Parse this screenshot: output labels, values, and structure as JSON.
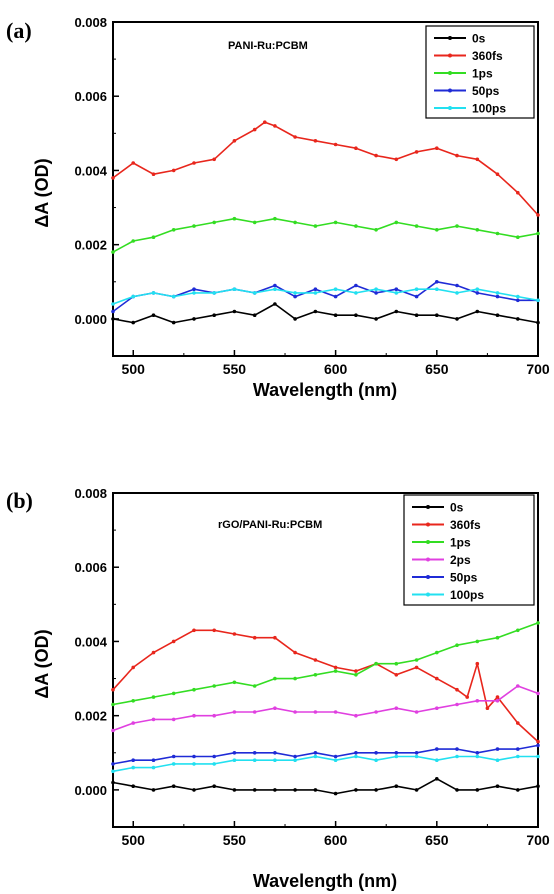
{
  "chart_data": [
    {
      "type": "line",
      "panel_label": "(a)",
      "title": "PANI-Ru:PCBM",
      "xlabel": "Wavelength (nm)",
      "ylabel": "ΔA (OD)",
      "xlim": [
        490,
        700
      ],
      "ylim": [
        -0.001,
        0.008
      ],
      "xticks": [
        "500",
        "550",
        "600",
        "650",
        "700"
      ],
      "yticks": [
        "0.000",
        "0.002",
        "0.004",
        "0.006",
        "0.008"
      ],
      "legend_position": "top-right",
      "series": [
        {
          "name": "0s",
          "color": "#000000",
          "x": [
            490,
            500,
            510,
            520,
            530,
            540,
            550,
            560,
            570,
            580,
            590,
            600,
            610,
            620,
            630,
            640,
            650,
            660,
            670,
            680,
            690,
            700
          ],
          "y": [
            0.0,
            -0.0001,
            0.0001,
            -0.0001,
            0.0,
            0.0001,
            0.0002,
            0.0001,
            0.0004,
            0.0,
            0.0002,
            0.0001,
            0.0001,
            0.0,
            0.0002,
            0.0001,
            0.0001,
            0.0,
            0.0002,
            0.0001,
            0.0,
            -0.0001
          ]
        },
        {
          "name": "360fs",
          "color": "#e8261c",
          "x": [
            490,
            500,
            510,
            520,
            530,
            540,
            550,
            560,
            565,
            570,
            580,
            590,
            600,
            610,
            620,
            630,
            640,
            650,
            660,
            670,
            680,
            690,
            700
          ],
          "y": [
            0.0038,
            0.0042,
            0.0039,
            0.004,
            0.0042,
            0.0043,
            0.0048,
            0.0051,
            0.0053,
            0.0052,
            0.0049,
            0.0048,
            0.0047,
            0.0046,
            0.0044,
            0.0043,
            0.0045,
            0.0046,
            0.0044,
            0.0043,
            0.0039,
            0.0034,
            0.0028
          ]
        },
        {
          "name": "1ps",
          "color": "#33dd22",
          "x": [
            490,
            500,
            510,
            520,
            530,
            540,
            550,
            560,
            570,
            580,
            590,
            600,
            610,
            620,
            630,
            640,
            650,
            660,
            670,
            680,
            690,
            700
          ],
          "y": [
            0.0018,
            0.0021,
            0.0022,
            0.0024,
            0.0025,
            0.0026,
            0.0027,
            0.0026,
            0.0027,
            0.0026,
            0.0025,
            0.0026,
            0.0025,
            0.0024,
            0.0026,
            0.0025,
            0.0024,
            0.0025,
            0.0024,
            0.0023,
            0.0022,
            0.0023
          ]
        },
        {
          "name": "50ps",
          "color": "#1f2bd6",
          "x": [
            490,
            500,
            510,
            520,
            530,
            540,
            550,
            560,
            570,
            580,
            590,
            600,
            610,
            620,
            630,
            640,
            650,
            660,
            670,
            680,
            690,
            700
          ],
          "y": [
            0.0002,
            0.0006,
            0.0007,
            0.0006,
            0.0008,
            0.0007,
            0.0008,
            0.0007,
            0.0009,
            0.0006,
            0.0008,
            0.0006,
            0.0009,
            0.0007,
            0.0008,
            0.0006,
            0.001,
            0.0009,
            0.0007,
            0.0006,
            0.0005,
            0.0005
          ]
        },
        {
          "name": "100ps",
          "color": "#22e0f0",
          "x": [
            490,
            500,
            510,
            520,
            530,
            540,
            550,
            560,
            570,
            580,
            590,
            600,
            610,
            620,
            630,
            640,
            650,
            660,
            670,
            680,
            690,
            700
          ],
          "y": [
            0.0004,
            0.0006,
            0.0007,
            0.0006,
            0.0007,
            0.0007,
            0.0008,
            0.0007,
            0.0008,
            0.0007,
            0.0007,
            0.0008,
            0.0007,
            0.0008,
            0.0007,
            0.0008,
            0.0008,
            0.0007,
            0.0008,
            0.0007,
            0.0006,
            0.0005
          ]
        }
      ]
    },
    {
      "type": "line",
      "panel_label": "(b)",
      "title": "rGO/PANI-Ru:PCBM",
      "xlabel": "Wavelength (nm)",
      "ylabel": "ΔA (OD)",
      "xlim": [
        490,
        700
      ],
      "ylim": [
        -0.001,
        0.008
      ],
      "xticks": [
        "500",
        "550",
        "600",
        "650",
        "700"
      ],
      "yticks": [
        "0.000",
        "0.002",
        "0.004",
        "0.006",
        "0.008"
      ],
      "legend_position": "top-right",
      "series": [
        {
          "name": "0s",
          "color": "#000000",
          "x": [
            490,
            500,
            510,
            520,
            530,
            540,
            550,
            560,
            570,
            580,
            590,
            600,
            610,
            620,
            630,
            640,
            650,
            660,
            670,
            680,
            690,
            700
          ],
          "y": [
            0.0002,
            0.0001,
            0.0,
            0.0001,
            0.0,
            0.0001,
            0.0,
            0.0,
            0.0,
            0.0,
            0.0,
            -0.0001,
            0.0,
            0.0,
            0.0001,
            0.0,
            0.0003,
            0.0,
            0.0,
            0.0001,
            0.0,
            0.0001
          ]
        },
        {
          "name": "360fs",
          "color": "#e8261c",
          "x": [
            490,
            500,
            510,
            520,
            530,
            540,
            550,
            560,
            570,
            580,
            590,
            600,
            610,
            620,
            630,
            640,
            650,
            660,
            665,
            670,
            675,
            680,
            690,
            700
          ],
          "y": [
            0.0027,
            0.0033,
            0.0037,
            0.004,
            0.0043,
            0.0043,
            0.0042,
            0.0041,
            0.0041,
            0.0037,
            0.0035,
            0.0033,
            0.0032,
            0.0034,
            0.0031,
            0.0033,
            0.003,
            0.0027,
            0.0025,
            0.0034,
            0.0022,
            0.0025,
            0.0018,
            0.0013
          ]
        },
        {
          "name": "1ps",
          "color": "#33dd22",
          "x": [
            490,
            500,
            510,
            520,
            530,
            540,
            550,
            560,
            570,
            580,
            590,
            600,
            610,
            620,
            630,
            640,
            650,
            660,
            670,
            680,
            690,
            700
          ],
          "y": [
            0.0023,
            0.0024,
            0.0025,
            0.0026,
            0.0027,
            0.0028,
            0.0029,
            0.0028,
            0.003,
            0.003,
            0.0031,
            0.0032,
            0.0031,
            0.0034,
            0.0034,
            0.0035,
            0.0037,
            0.0039,
            0.004,
            0.0041,
            0.0043,
            0.0045
          ]
        },
        {
          "name": "2ps",
          "color": "#e040e0",
          "x": [
            490,
            500,
            510,
            520,
            530,
            540,
            550,
            560,
            570,
            580,
            590,
            600,
            610,
            620,
            630,
            640,
            650,
            660,
            670,
            680,
            690,
            700
          ],
          "y": [
            0.0016,
            0.0018,
            0.0019,
            0.0019,
            0.002,
            0.002,
            0.0021,
            0.0021,
            0.0022,
            0.0021,
            0.0021,
            0.0021,
            0.002,
            0.0021,
            0.0022,
            0.0021,
            0.0022,
            0.0023,
            0.0024,
            0.0024,
            0.0028,
            0.0026
          ]
        },
        {
          "name": "50ps",
          "color": "#1f2bd6",
          "x": [
            490,
            500,
            510,
            520,
            530,
            540,
            550,
            560,
            570,
            580,
            590,
            600,
            610,
            620,
            630,
            640,
            650,
            660,
            670,
            680,
            690,
            700
          ],
          "y": [
            0.0007,
            0.0008,
            0.0008,
            0.0009,
            0.0009,
            0.0009,
            0.001,
            0.001,
            0.001,
            0.0009,
            0.001,
            0.0009,
            0.001,
            0.001,
            0.001,
            0.001,
            0.0011,
            0.0011,
            0.001,
            0.0011,
            0.0011,
            0.0012
          ]
        },
        {
          "name": "100ps",
          "color": "#22e0f0",
          "x": [
            490,
            500,
            510,
            520,
            530,
            540,
            550,
            560,
            570,
            580,
            590,
            600,
            610,
            620,
            630,
            640,
            650,
            660,
            670,
            680,
            690,
            700
          ],
          "y": [
            0.0005,
            0.0006,
            0.0006,
            0.0007,
            0.0007,
            0.0007,
            0.0008,
            0.0008,
            0.0008,
            0.0008,
            0.0009,
            0.0008,
            0.0009,
            0.0008,
            0.0009,
            0.0009,
            0.0008,
            0.0009,
            0.0009,
            0.0008,
            0.0009,
            0.0009
          ]
        }
      ]
    }
  ]
}
